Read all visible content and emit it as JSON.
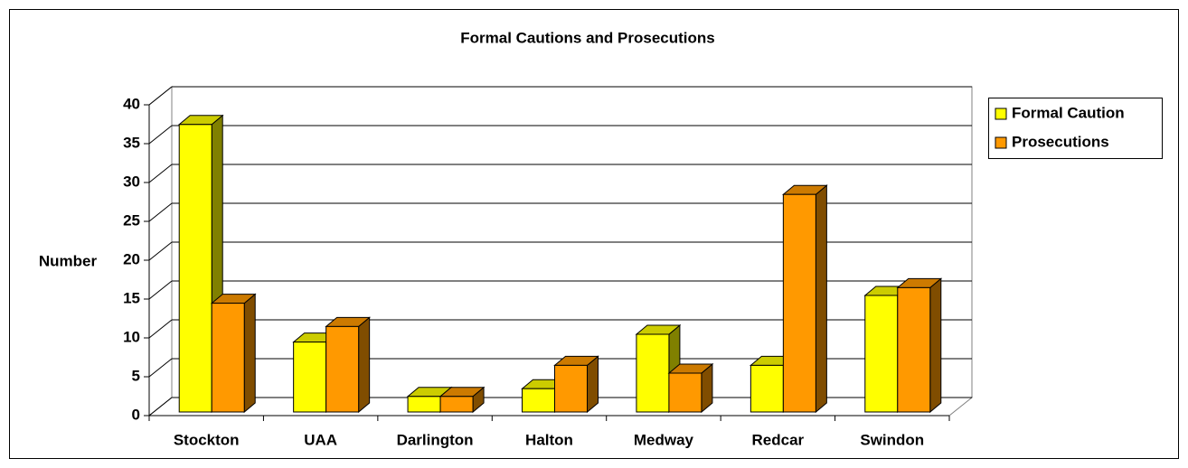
{
  "chart_data": {
    "type": "bar3d",
    "title": "Formal Cautions and Prosecutions",
    "y_label": "Number",
    "categories": [
      "Stockton",
      "UAA",
      "Darlington",
      "Halton",
      "Medway",
      "Redcar",
      "Swindon"
    ],
    "series": [
      {
        "name": "Formal Caution",
        "color": "#ffff00",
        "values": [
          37,
          9,
          2,
          3,
          10,
          6,
          15
        ]
      },
      {
        "name": "Prosecutions",
        "color": "#ff9900",
        "values": [
          14,
          11,
          2,
          6,
          5,
          28,
          16
        ]
      }
    ],
    "ylim": [
      0,
      40
    ],
    "yticks": [
      0,
      5,
      10,
      15,
      20,
      25,
      30,
      35,
      40
    ],
    "grid": true,
    "legend": "right"
  }
}
